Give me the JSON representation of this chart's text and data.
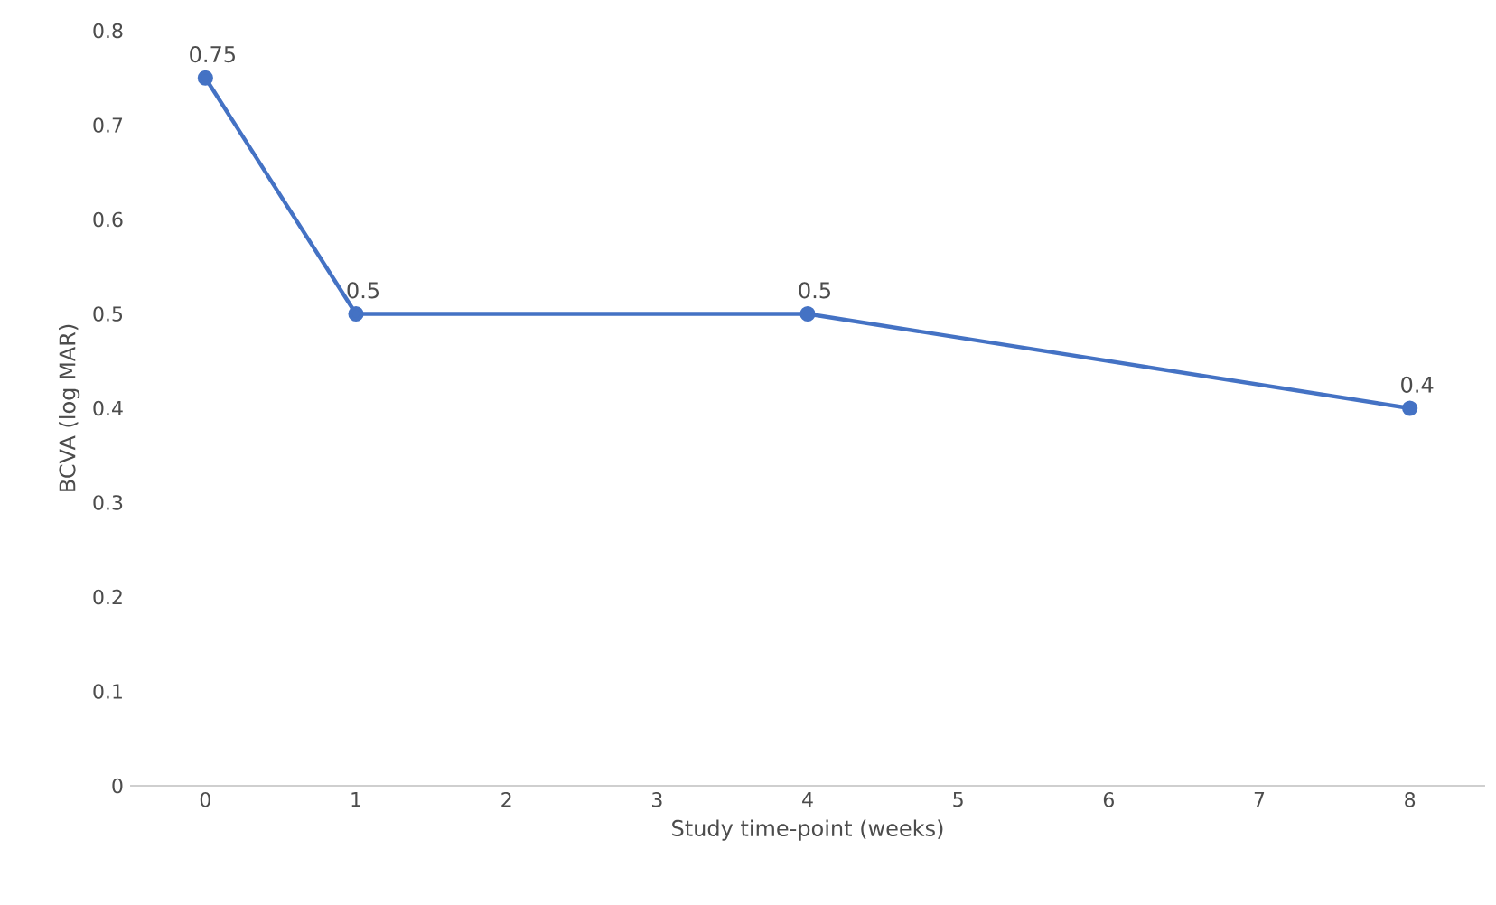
{
  "chart_data": {
    "type": "line",
    "xlabel": "Study time-point (weeks)",
    "ylabel": "BCVA (log MAR)",
    "x": [
      0,
      1,
      4,
      8
    ],
    "series": [
      {
        "color": "#4472c4",
        "values": [
          0.75,
          0.5,
          0.5,
          0.4
        ]
      }
    ],
    "xlim": [
      -0.5,
      8.5
    ],
    "xticks": [
      0,
      1,
      2,
      3,
      4,
      5,
      6,
      7,
      8
    ],
    "ylim": [
      0,
      0.8
    ],
    "yticks": [
      0,
      0.1,
      0.2,
      0.3,
      0.4,
      0.5,
      0.6,
      0.7,
      0.8
    ],
    "data_labels": true,
    "marker": "circle",
    "line_style": "solid"
  }
}
